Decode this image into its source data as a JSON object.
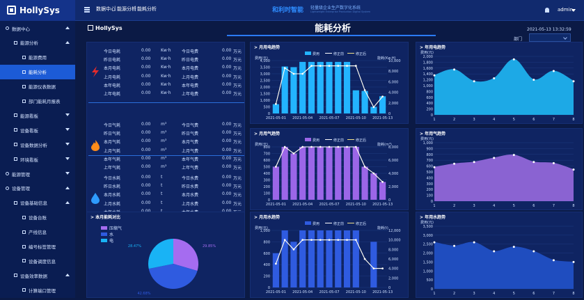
{
  "app": {
    "logo": "HollySys",
    "sublogo": "HollySys"
  },
  "header": {
    "breadcrumb": [
      "数据中心",
      "能源分析",
      "能耗分析"
    ],
    "brand": "和利时智能",
    "brand_sub": "轻量级企业生产数字化系统",
    "brand_sub2": "Lightweight Enterprise Production Digital System",
    "user": "admin"
  },
  "page": {
    "title": "能耗分析",
    "datetime": "2021-05-13 13:32:59",
    "dept_label": "部门",
    "dept_value": ""
  },
  "sidebar": {
    "items": [
      {
        "label": "数据中心",
        "level": 0,
        "icon": "database-icon",
        "caret": "up"
      },
      {
        "label": "能源分析",
        "level": 1,
        "caret": "up"
      },
      {
        "label": "能源费用",
        "level": 2
      },
      {
        "label": "能耗分析",
        "level": 2,
        "active": true
      },
      {
        "label": "能源仪表数据",
        "level": 2
      },
      {
        "label": "部门能耗月报表",
        "level": 2
      },
      {
        "label": "能源看板",
        "level": 1,
        "caret": "down"
      },
      {
        "label": "设备看板",
        "level": 1,
        "caret": "down"
      },
      {
        "label": "设备数据分析",
        "level": 1,
        "caret": "down"
      },
      {
        "label": "环境看板",
        "level": 1,
        "caret": "down"
      },
      {
        "label": "能源管理",
        "level": 0,
        "icon": "energy-icon",
        "caret": "down"
      },
      {
        "label": "设备管理",
        "level": 0,
        "icon": "wrench-icon",
        "caret": "up"
      },
      {
        "label": "设备基础信息",
        "level": 1,
        "caret": "up"
      },
      {
        "label": "设备台账",
        "level": 2
      },
      {
        "label": "产线信息",
        "level": 2
      },
      {
        "label": "编号标签管理",
        "level": 2
      },
      {
        "label": "设备调度信息",
        "level": 2
      },
      {
        "label": "设备效率数据",
        "level": 1,
        "caret": "up"
      },
      {
        "label": "计算端口管理",
        "level": 2
      }
    ]
  },
  "summary": {
    "groups": [
      {
        "icon": "lightning-icon",
        "color": "#e32b2b",
        "rows": [
          {
            "l1": "今日电耗",
            "v1": "0.00",
            "u1": "Kw·h",
            "l2": "今日电费",
            "v2": "0.00",
            "u2": "万元"
          },
          {
            "l1": "昨日电耗",
            "v1": "0.00",
            "u1": "Kw·h",
            "l2": "昨日电费",
            "v2": "0.00",
            "u2": "万元"
          },
          {
            "l1": "本月电耗",
            "v1": "0.00",
            "u1": "Kw·h",
            "l2": "本月电费",
            "v2": "0.00",
            "u2": "万元"
          },
          {
            "l1": "上月电耗",
            "v1": "0.00",
            "u1": "Kw·h",
            "l2": "上月电费",
            "v2": "0.00",
            "u2": "万元"
          },
          {
            "l1": "本年电耗",
            "v1": "0.00",
            "u1": "Kw·h",
            "l2": "本年电费",
            "v2": "0.00",
            "u2": "万元"
          },
          {
            "l1": "上年电耗",
            "v1": "0.00",
            "u1": "Kw·h",
            "l2": "上年电费",
            "v2": "0.00",
            "u2": "万元"
          }
        ]
      },
      {
        "icon": "flame-icon",
        "color": "#ff8c1a",
        "rows": [
          {
            "l1": "今日气耗",
            "v1": "0.00",
            "u1": "m³",
            "l2": "今日气费",
            "v2": "0.00",
            "u2": "万元"
          },
          {
            "l1": "昨日气耗",
            "v1": "0.00",
            "u1": "m³",
            "l2": "昨日气费",
            "v2": "0.00",
            "u2": "万元"
          },
          {
            "l1": "本月气耗",
            "v1": "0.00",
            "u1": "m³",
            "l2": "本月气费",
            "v2": "0.00",
            "u2": "万元"
          },
          {
            "l1": "上月气耗",
            "v1": "0.00",
            "u1": "m³",
            "l2": "上月气费",
            "v2": "0.00",
            "u2": "万元"
          },
          {
            "l1": "本年气耗",
            "v1": "0.00",
            "u1": "m³",
            "l2": "本年气费",
            "v2": "0.00",
            "u2": "万元"
          },
          {
            "l1": "上年气耗",
            "v1": "0.00",
            "u1": "m³",
            "l2": "上年气费",
            "v2": "0.00",
            "u2": "万元"
          }
        ]
      },
      {
        "icon": "water-drop-icon",
        "color": "#2e9bff",
        "rows": [
          {
            "l1": "今日水耗",
            "v1": "0.00",
            "u1": "t",
            "l2": "今日水费",
            "v2": "0.00",
            "u2": "万元"
          },
          {
            "l1": "昨日水耗",
            "v1": "0.00",
            "u1": "t",
            "l2": "昨日水费",
            "v2": "0.00",
            "u2": "万元"
          },
          {
            "l1": "本月水耗",
            "v1": "0.00",
            "u1": "t",
            "l2": "本月水费",
            "v2": "0.00",
            "u2": "万元"
          },
          {
            "l1": "上月水耗",
            "v1": "0.00",
            "u1": "t",
            "l2": "上月水费",
            "v2": "0.00",
            "u2": "万元"
          },
          {
            "l1": "本年水耗",
            "v1": "0.00",
            "u1": "t",
            "l2": "本年水费",
            "v2": "0.00",
            "u2": "万元"
          },
          {
            "l1": "上年水耗",
            "v1": "0.00",
            "u1": "t",
            "l2": "上年水费",
            "v2": "0.00",
            "u2": "万元"
          }
        ]
      }
    ]
  },
  "chart_data": [
    {
      "id": "month-elec",
      "type": "bar",
      "title": "月用电趋势",
      "ylabel_left": "费用(元)",
      "ylabel_right": "能耗(Kw·H)",
      "ylim_left": [
        0,
        4000
      ],
      "yticks_left": [
        0,
        500,
        1000,
        1500,
        2000,
        2500,
        3000,
        3500,
        4000
      ],
      "ylim_right": [
        0,
        10000
      ],
      "yticks_right": [
        0,
        2000,
        4000,
        6000,
        8000,
        10000
      ],
      "xtick_labels": [
        "2021-05-01",
        "2021-05-04",
        "2021-05-07",
        "2021-05-10",
        "2021-05-13"
      ],
      "x": [
        "2021-05-01",
        "2021-05-02",
        "2021-05-03",
        "2021-05-04",
        "2021-05-05",
        "2021-05-06",
        "2021-05-07",
        "2021-05-08",
        "2021-05-09",
        "2021-05-10",
        "2021-05-11",
        "2021-05-12",
        "2021-05-13"
      ],
      "legend": [
        "费用",
        "修正前",
        "修正后"
      ],
      "series": [
        {
          "name": "费用",
          "type": "bar",
          "values": [
            700,
            3550,
            3500,
            3900,
            3900,
            3900,
            3900,
            3900,
            3900,
            1750,
            1700,
            500,
            1300
          ]
        },
        {
          "name": "修正前",
          "type": "line",
          "axis": "right",
          "values": [
            1800,
            8600,
            7500,
            7500,
            9000,
            9000,
            9000,
            9000,
            9000,
            9000,
            4400,
            1200,
            3200
          ]
        },
        {
          "name": "修正后",
          "type": "line",
          "axis": "right",
          "values": [
            1800,
            8600,
            7500,
            7500,
            9000,
            9000,
            9000,
            9000,
            9000,
            9000,
            4400,
            1200,
            3200
          ]
        }
      ]
    },
    {
      "id": "month-gas",
      "type": "bar",
      "title": "月用气趋势",
      "ylabel_left": "费用(元)",
      "ylabel_right": "能耗(m³)",
      "ylim_left": [
        0,
        800
      ],
      "yticks_left": [
        0,
        100,
        200,
        300,
        400,
        500,
        600,
        700,
        800
      ],
      "ylim_right": [
        0,
        8000
      ],
      "yticks_right": [
        0,
        2000,
        4000,
        6000,
        8000
      ],
      "xtick_labels": [
        "2021-05-01",
        "2021-05-04",
        "2021-05-07",
        "2021-05-10",
        "2021-05-13"
      ],
      "x": [
        "2021-05-01",
        "2021-05-02",
        "2021-05-03",
        "2021-05-04",
        "2021-05-05",
        "2021-05-06",
        "2021-05-07",
        "2021-05-08",
        "2021-05-09",
        "2021-05-10",
        "2021-05-11",
        "2021-05-12",
        "2021-05-13"
      ],
      "legend": [
        "费用",
        "修正前",
        "修正后"
      ],
      "series": [
        {
          "name": "费用",
          "type": "bar",
          "values": [
            500,
            800,
            700,
            800,
            800,
            800,
            800,
            800,
            800,
            800,
            500,
            400,
            270
          ]
        },
        {
          "name": "修正前",
          "type": "line",
          "axis": "right",
          "values": [
            5000,
            8000,
            7000,
            8000,
            8000,
            8000,
            8000,
            8000,
            8000,
            8000,
            5000,
            4000,
            2700
          ]
        },
        {
          "name": "修正后",
          "type": "line",
          "axis": "right",
          "values": [
            5000,
            8000,
            7000,
            8000,
            8000,
            8000,
            8000,
            8000,
            8000,
            8000,
            5000,
            4000,
            2700
          ]
        }
      ]
    },
    {
      "id": "month-water",
      "type": "bar",
      "title": "月用水趋势",
      "ylabel_left": "费用(元)",
      "ylabel_right": "能耗(t)",
      "ylim_left": [
        0,
        1000
      ],
      "yticks_left": [
        0,
        200,
        400,
        600,
        800,
        1000
      ],
      "ylim_right": [
        0,
        12000
      ],
      "yticks_right": [
        0,
        2000,
        4000,
        6000,
        8000,
        10000,
        12000
      ],
      "xtick_labels": [
        "2021-05-01",
        "2021-05-04",
        "2021-05-07",
        "2021-05-10",
        "2021-05-13"
      ],
      "x": [
        "2021-05-01",
        "2021-05-02",
        "2021-05-03",
        "2021-05-04",
        "2021-05-05",
        "2021-05-06",
        "2021-05-07",
        "2021-05-08",
        "2021-05-09",
        "2021-05-10",
        "2021-05-11",
        "2021-05-12",
        "2021-05-13"
      ],
      "legend": [
        "费用",
        "修正前",
        "修正后"
      ],
      "series": [
        {
          "name": "费用",
          "type": "bar",
          "values": [
            600,
            1000,
            800,
            1000,
            1000,
            1000,
            1000,
            1000,
            1000,
            1000,
            0,
            800,
            0
          ]
        },
        {
          "name": "修正前",
          "type": "line",
          "axis": "right",
          "values": [
            5000,
            10000,
            8000,
            10000,
            10000,
            10000,
            10000,
            10000,
            10000,
            10000,
            6000,
            4000,
            4000
          ]
        },
        {
          "name": "修正后",
          "type": "line",
          "axis": "right",
          "values": [
            5000,
            10000,
            8000,
            10000,
            10000,
            10000,
            10000,
            10000,
            10000,
            10000,
            6000,
            4000,
            4000
          ]
        }
      ]
    },
    {
      "id": "year-elec",
      "type": "area",
      "title": "年用电趋势",
      "ylabel": "费用(元)",
      "color": "#1da9e6",
      "ylim": [
        0,
        2000
      ],
      "yticks": [
        0,
        200,
        400,
        600,
        800,
        1000,
        1200,
        1400,
        1600,
        1800,
        2000
      ],
      "x": [
        1,
        2,
        3,
        4,
        5,
        6,
        7,
        8
      ],
      "values": [
        1350,
        1550,
        1150,
        1250,
        1900,
        1200,
        1500,
        1150
      ]
    },
    {
      "id": "year-gas",
      "type": "area",
      "title": "年用气趋势",
      "ylabel": "费用(元)",
      "color": "#8a63d2",
      "ylim": [
        0,
        1000
      ],
      "yticks": [
        0,
        100,
        200,
        300,
        400,
        500,
        600,
        700,
        800,
        900,
        1000
      ],
      "x": [
        1,
        2,
        3,
        4,
        5,
        6,
        7,
        8
      ],
      "values": [
        580,
        640,
        670,
        740,
        790,
        670,
        650,
        540
      ]
    },
    {
      "id": "year-water",
      "type": "area",
      "title": "年用水趋势",
      "ylabel": "费用(元)",
      "color": "#1f4dbf",
      "ylim": [
        0,
        3500
      ],
      "yticks": [
        0,
        500,
        1000,
        1500,
        2000,
        2500,
        3000,
        3500
      ],
      "x": [
        1,
        2,
        3,
        4,
        5,
        6,
        7,
        8
      ],
      "values": [
        2600,
        2400,
        2600,
        2100,
        2350,
        2100,
        1600,
        1500
      ]
    },
    {
      "id": "month-ratio",
      "type": "pie",
      "title": "本月能耗对比",
      "legend": [
        "压缩气",
        "水",
        "电"
      ],
      "series": [
        {
          "name": "压缩气",
          "value": 29.85,
          "color": "#a56cf0"
        },
        {
          "name": "水",
          "value": 42.68,
          "color": "#2f5be0"
        },
        {
          "name": "电",
          "value": 28.47,
          "color": "#19b3f5"
        }
      ],
      "labels": [
        "29.85%",
        "42.68%",
        "28.47%"
      ]
    }
  ]
}
